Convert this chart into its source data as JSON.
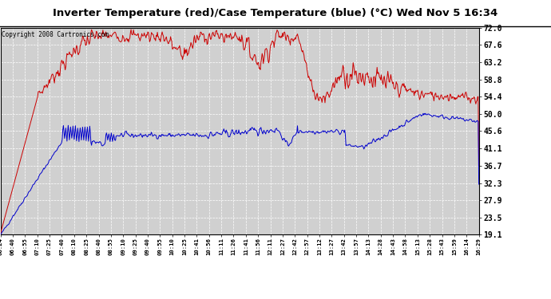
{
  "title": "Inverter Temperature (red)/Case Temperature (blue) (°C) Wed Nov 5 16:34",
  "copyright": "Copyright 2008 Cartronics.com",
  "ylabel_right": [
    "72.0",
    "67.6",
    "63.2",
    "58.8",
    "54.4",
    "50.0",
    "45.6",
    "41.1",
    "36.7",
    "32.3",
    "27.9",
    "23.5",
    "19.1"
  ],
  "y_min": 19.1,
  "y_max": 72.0,
  "x_labels": [
    "06:24",
    "06:40",
    "06:55",
    "07:10",
    "07:25",
    "07:40",
    "08:10",
    "08:25",
    "08:40",
    "08:55",
    "09:10",
    "09:25",
    "09:40",
    "09:55",
    "10:10",
    "10:25",
    "10:41",
    "10:56",
    "11:11",
    "11:26",
    "11:41",
    "11:56",
    "12:11",
    "12:27",
    "12:42",
    "12:57",
    "13:12",
    "13:27",
    "13:42",
    "13:57",
    "14:13",
    "14:28",
    "14:43",
    "14:58",
    "15:13",
    "15:28",
    "15:43",
    "15:59",
    "16:14",
    "16:29"
  ],
  "plot_bg_color": "#d0d0d0",
  "fig_bg_color": "#ffffff",
  "grid_color": "#b0b0b0",
  "red_color": "#cc0000",
  "blue_color": "#0000cc"
}
